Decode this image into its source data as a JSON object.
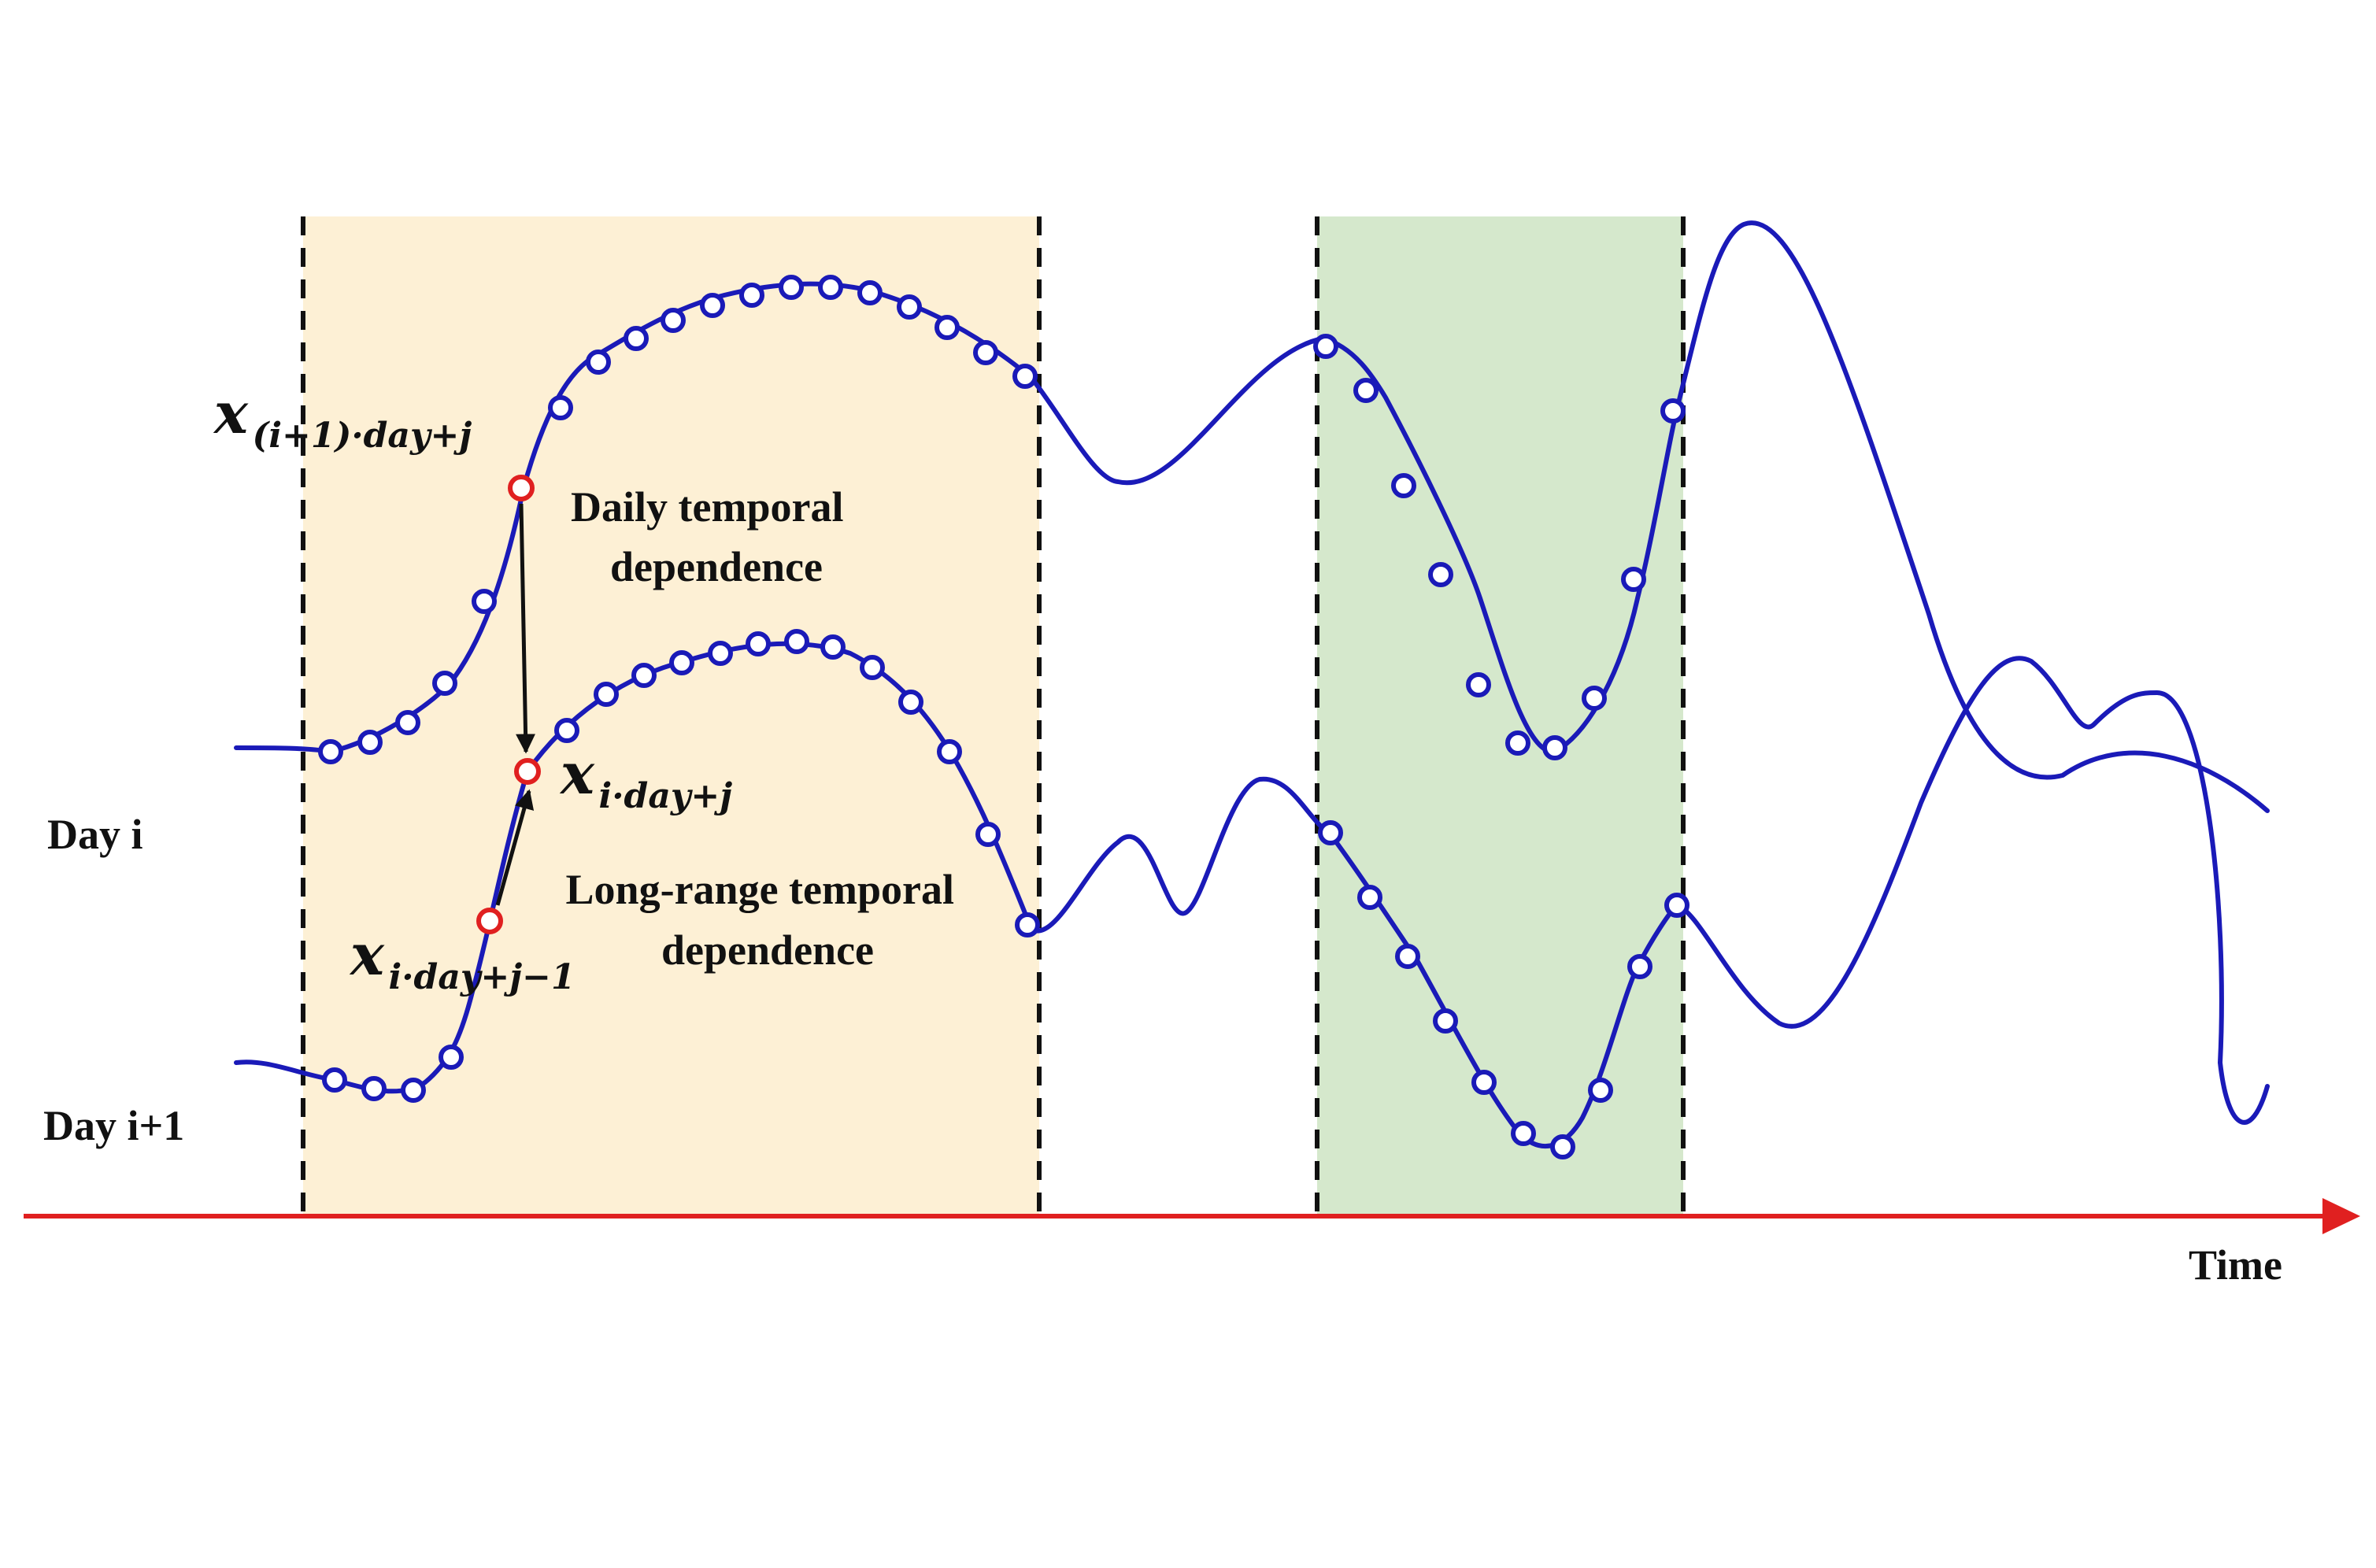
{
  "labels": {
    "day_i": "Day i",
    "day_i_plus_1": "Day i+1",
    "time_axis": "Time",
    "daily_dependence": [
      "Daily temporal",
      "dependence"
    ],
    "long_range_dependence": [
      "Long-range temporal",
      "dependence"
    ]
  },
  "math": {
    "x_prev_day": {
      "base": "x",
      "sub": "(i+1)·day+j"
    },
    "x_current": {
      "base": "x",
      "sub": "i·day+j"
    },
    "x_prev_step": {
      "base": "x",
      "sub": "i·day+j−1"
    }
  },
  "colors": {
    "series": "#1a1ab8",
    "highlight_point": "#e02020",
    "time_axis": "#e02020",
    "window_daily": "#fdf0d5",
    "window_recent": "#d5e8cc",
    "boundary": "#111111"
  }
}
